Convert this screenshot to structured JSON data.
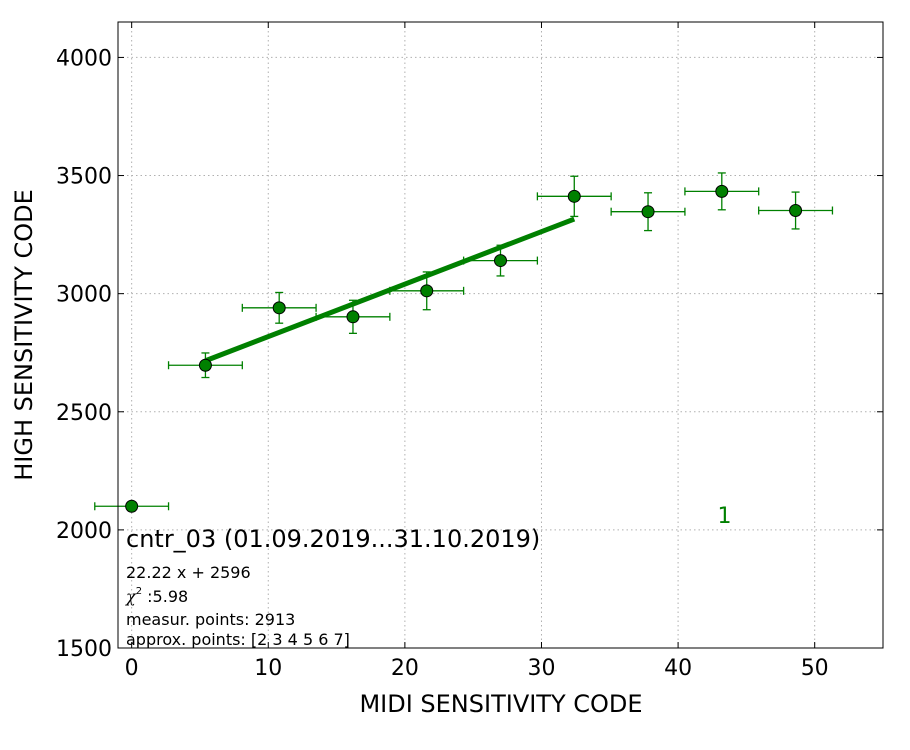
{
  "chart_data": {
    "type": "scatter",
    "xlabel": "MIDI SENSITIVITY CODE",
    "ylabel": "HIGH SENSITIVITY CODE",
    "xlim": [
      -1,
      55
    ],
    "ylim": [
      1500,
      4150
    ],
    "xticks": [
      0,
      10,
      20,
      30,
      40,
      50
    ],
    "yticks": [
      1500,
      2000,
      2500,
      3000,
      3500,
      4000
    ],
    "grid": true,
    "colors": {
      "series": "#008000",
      "marker_fill": "#008000",
      "marker_edge": "#000000",
      "grid": "#b0b0b0"
    },
    "series": [
      {
        "points": [
          {
            "x": 0.0,
            "y": 2100,
            "xerr": 2.7,
            "yerr": 0
          },
          {
            "x": 5.4,
            "y": 2697,
            "xerr": 2.7,
            "yerr": 52
          },
          {
            "x": 10.8,
            "y": 2940,
            "xerr": 2.7,
            "yerr": 65
          },
          {
            "x": 16.2,
            "y": 2902,
            "xerr": 2.7,
            "yerr": 70
          },
          {
            "x": 21.6,
            "y": 3012,
            "xerr": 2.7,
            "yerr": 80
          },
          {
            "x": 27.0,
            "y": 3140,
            "xerr": 2.7,
            "yerr": 65
          },
          {
            "x": 32.4,
            "y": 3412,
            "xerr": 2.7,
            "yerr": 85
          },
          {
            "x": 37.8,
            "y": 3347,
            "xerr": 2.7,
            "yerr": 80
          },
          {
            "x": 43.2,
            "y": 3433,
            "xerr": 2.7,
            "yerr": 78
          },
          {
            "x": 48.6,
            "y": 3352,
            "xerr": 2.7,
            "yerr": 78
          }
        ]
      }
    ],
    "fit": {
      "slope": 22.22,
      "intercept": 2596,
      "x_range": [
        5.4,
        32.4
      ]
    },
    "annotations": {
      "title": "cntr_03 (01.09.2019...31.10.2019)",
      "equation": "22.22 x + 2596",
      "chi_symbol": "χ",
      "chi_power": "2",
      "chi_value": " :5.98",
      "measur_points": "measur. points: 2913",
      "approx_points": "approx. points: [2 3 4 5 6 7]",
      "marker_label": {
        "text": "1",
        "x": 43.4,
        "y": 2030
      }
    }
  }
}
